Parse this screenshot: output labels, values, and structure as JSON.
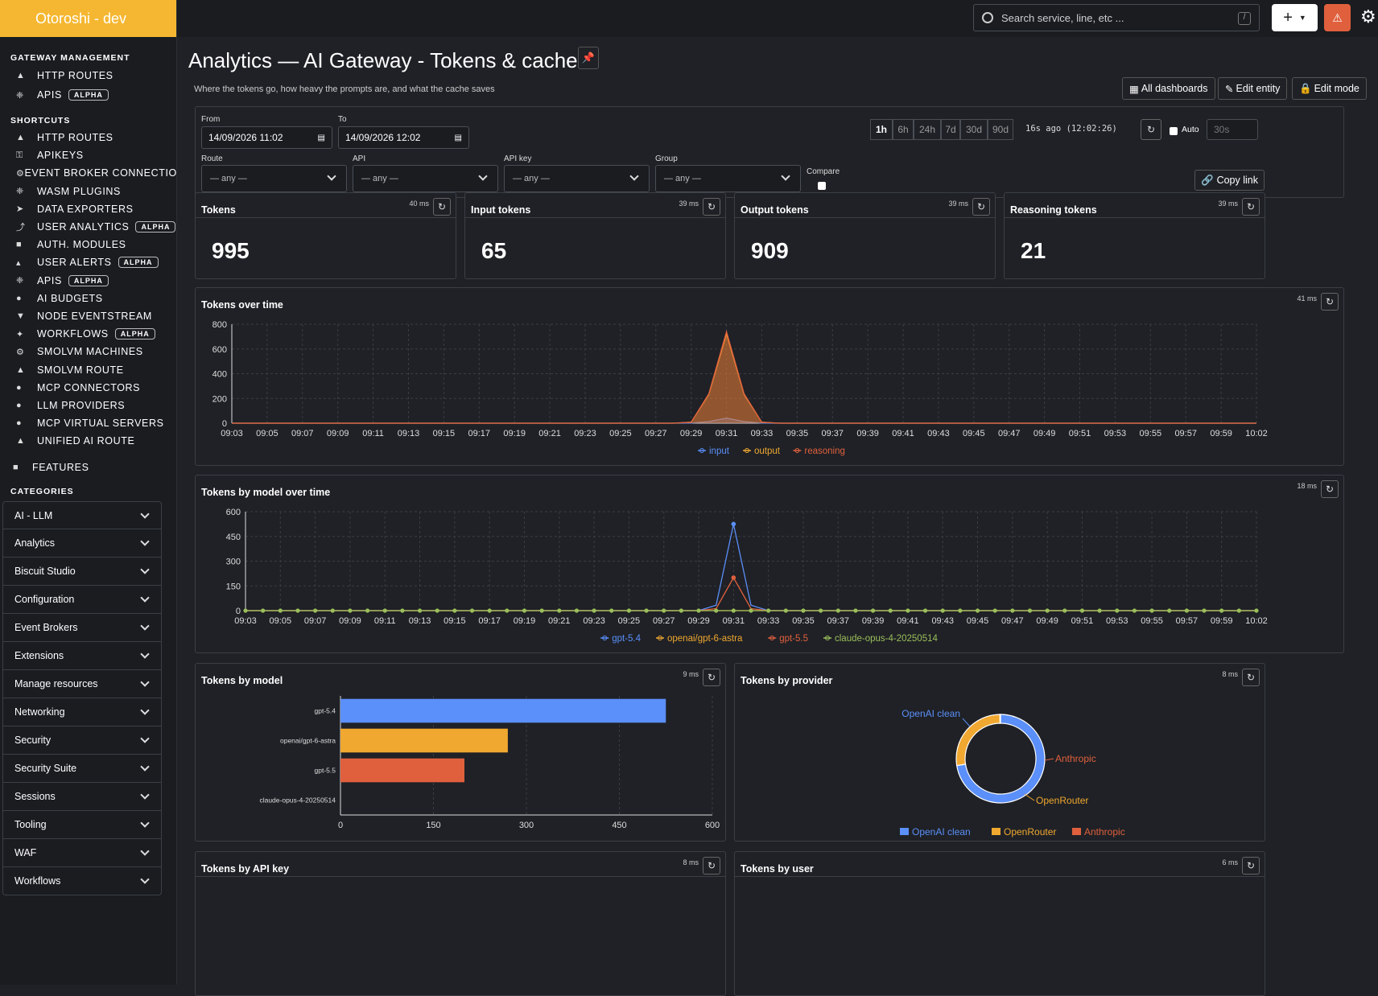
{
  "brand": "Otoroshi - dev",
  "sidebar": {
    "gateway_title": "GATEWAY MANAGEMENT",
    "gateway_items": [
      {
        "label": "HTTP ROUTES",
        "icon": "road-icon"
      },
      {
        "label": "APIS",
        "icon": "plug-icon",
        "badge": "ALPHA"
      }
    ],
    "shortcuts_title": "SHORTCUTS",
    "shortcuts": [
      {
        "label": "HTTP ROUTES",
        "icon": "road-icon"
      },
      {
        "label": "APIKEYS",
        "icon": "key-icon"
      },
      {
        "label": "EVENT BROKER CONNECTIONS",
        "icon": "gear-icon"
      },
      {
        "label": "WASM PLUGINS",
        "icon": "plug-icon"
      },
      {
        "label": "DATA EXPORTERS",
        "icon": "send-icon"
      },
      {
        "label": "USER ANALYTICS",
        "icon": "chart-icon",
        "badge": "ALPHA"
      },
      {
        "label": "AUTH. MODULES",
        "icon": "lock-icon"
      },
      {
        "label": "USER ALERTS",
        "icon": "bell-icon",
        "badge": "ALPHA"
      },
      {
        "label": "APIS",
        "icon": "plug-icon",
        "badge": "ALPHA"
      },
      {
        "label": "AI BUDGETS",
        "icon": "brain-icon"
      },
      {
        "label": "NODE EVENTSTREAM",
        "icon": "filter-icon"
      },
      {
        "label": "WORKFLOWS",
        "icon": "sitemap-icon",
        "badge": "ALPHA"
      },
      {
        "label": "SMOLVM MACHINES",
        "icon": "cog-icon"
      },
      {
        "label": "SMOLVM ROUTE",
        "icon": "road-icon"
      },
      {
        "label": "MCP CONNECTORS",
        "icon": "brain-icon"
      },
      {
        "label": "LLM PROVIDERS",
        "icon": "brain-icon"
      },
      {
        "label": "MCP VIRTUAL SERVERS",
        "icon": "brain-icon"
      },
      {
        "label": "UNIFIED AI ROUTE",
        "icon": "road-icon"
      }
    ],
    "features": "FEATURES",
    "categories_title": "CATEGORIES",
    "categories": [
      "AI - LLM",
      "Analytics",
      "Biscuit Studio",
      "Configuration",
      "Event Brokers",
      "Extensions",
      "Manage resources",
      "Networking",
      "Security",
      "Security Suite",
      "Sessions",
      "Tooling",
      "WAF",
      "Workflows"
    ]
  },
  "topbar": {
    "search_placeholder": "Search service, line, etc ...",
    "search_kbd": "/"
  },
  "page": {
    "title": "Analytics — AI Gateway - Tokens & cache",
    "subtitle": "Where the tokens go, how heavy the prompts are, and what the cache saves",
    "buttons": {
      "all_dashboards": "All dashboards",
      "edit_entity": "Edit entity",
      "edit_mode": "Edit mode"
    }
  },
  "filters": {
    "from_label": "From",
    "from_value": "14/09/2026 11:02",
    "to_label": "To",
    "to_value": "14/09/2026 12:02",
    "ranges": [
      "1h",
      "6h",
      "24h",
      "7d",
      "30d",
      "90d"
    ],
    "active_range": "1h",
    "refreshed": "16s ago (12:02:26)",
    "auto_label": "Auto",
    "auto_interval": "30s",
    "route_label": "Route",
    "api_label": "API",
    "apikey_label": "API key",
    "group_label": "Group",
    "any": "— any —",
    "compare_label": "Compare",
    "copy_link": "Copy link"
  },
  "kpis": [
    {
      "title": "Tokens",
      "ms": "40 ms",
      "value": "995"
    },
    {
      "title": "Input tokens",
      "ms": "39 ms",
      "value": "65"
    },
    {
      "title": "Output tokens",
      "ms": "39 ms",
      "value": "909"
    },
    {
      "title": "Reasoning tokens",
      "ms": "39 ms",
      "value": "21"
    }
  ],
  "panels": {
    "over_time": {
      "title": "Tokens over time",
      "ms": "41 ms"
    },
    "by_model_time": {
      "title": "Tokens by model over time",
      "ms": "18 ms"
    },
    "by_model": {
      "title": "Tokens by model",
      "ms": "9 ms"
    },
    "by_provider": {
      "title": "Tokens by provider",
      "ms": "8 ms"
    },
    "by_apikey": {
      "title": "Tokens by API key",
      "ms": "8 ms"
    },
    "by_user": {
      "title": "Tokens by user",
      "ms": "6 ms"
    }
  },
  "colors": {
    "blue": "#5b8ff9",
    "orange": "#f0a830",
    "red": "#e0603d",
    "green": "#9bbf5a"
  },
  "chart_data": [
    {
      "type": "area",
      "x_ticks": [
        "09:03",
        "09:05",
        "09:07",
        "09:09",
        "09:11",
        "09:13",
        "09:15",
        "09:17",
        "09:19",
        "09:21",
        "09:23",
        "09:25",
        "09:27",
        "09:29",
        "09:31",
        "09:33",
        "09:35",
        "09:37",
        "09:39",
        "09:41",
        "09:43",
        "09:45",
        "09:47",
        "09:49",
        "09:51",
        "09:53",
        "09:55",
        "09:57",
        "09:59",
        "10:02"
      ],
      "ylim": [
        0,
        800
      ],
      "y_ticks": [
        0,
        200,
        400,
        600,
        800
      ],
      "series": [
        {
          "name": "input",
          "color": "#5b8ff9",
          "peak_x": "09:31",
          "peak": 40
        },
        {
          "name": "output",
          "color": "#f0a830",
          "peak_x": "09:31",
          "peak": 720
        },
        {
          "name": "reasoning",
          "color": "#e0603d",
          "peak_x": "09:31",
          "peak": 740
        }
      ]
    },
    {
      "type": "line",
      "x_ticks": [
        "09:03",
        "09:05",
        "09:07",
        "09:09",
        "09:11",
        "09:13",
        "09:15",
        "09:17",
        "09:19",
        "09:21",
        "09:23",
        "09:25",
        "09:27",
        "09:29",
        "09:31",
        "09:33",
        "09:35",
        "09:37",
        "09:39",
        "09:41",
        "09:43",
        "09:45",
        "09:47",
        "09:49",
        "09:51",
        "09:53",
        "09:55",
        "09:57",
        "09:59",
        "10:02"
      ],
      "ylim": [
        0,
        600
      ],
      "y_ticks": [
        0,
        150,
        300,
        450,
        600
      ],
      "series": [
        {
          "name": "gpt-5.4",
          "color": "#5b8ff9",
          "peak_x": "09:31",
          "peak": 525
        },
        {
          "name": "openai/gpt-6-astra",
          "color": "#f0a830",
          "peak_x": "09:32",
          "peak": 270
        },
        {
          "name": "gpt-5.5",
          "color": "#e0603d",
          "peak_x": "09:31",
          "peak": 200
        },
        {
          "name": "claude-opus-4-20250514",
          "color": "#9bbf5a",
          "peak_x": null,
          "peak": 0
        }
      ]
    },
    {
      "type": "bar",
      "orientation": "horizontal",
      "categories": [
        "gpt-5.4",
        "openai/gpt-6-astra",
        "gpt-5.5",
        "claude-opus-4-20250514"
      ],
      "values": [
        525,
        270,
        200,
        0
      ],
      "colors": [
        "#5b8ff9",
        "#f0a830",
        "#e0603d",
        "#9bbf5a"
      ],
      "xlim": [
        0,
        600
      ],
      "x_ticks": [
        0,
        150,
        300,
        450,
        600
      ]
    },
    {
      "type": "pie",
      "donut": true,
      "labels": [
        "OpenAI clean",
        "OpenRouter",
        "Anthropic"
      ],
      "values": [
        72.5,
        27.3,
        0.2
      ],
      "colors": [
        "#5b8ff9",
        "#f0a830",
        "#e0603d"
      ],
      "legend": "bottom"
    }
  ]
}
